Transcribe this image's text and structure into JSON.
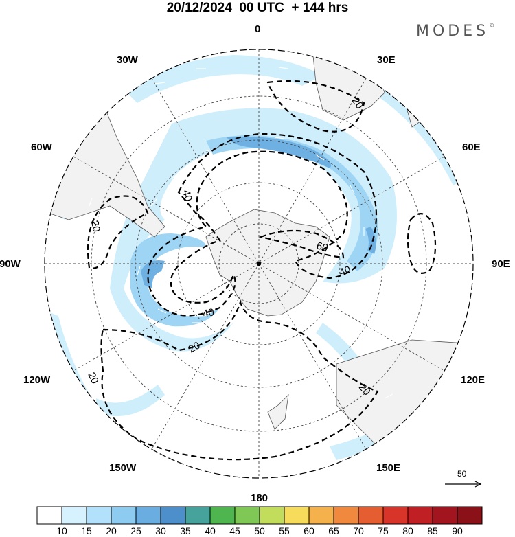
{
  "header": {
    "title": "20/12/2024  00 UTC  + 144 hrs",
    "brand": "MODES",
    "brand_mark": "©"
  },
  "map": {
    "projection": "south-polar-stereographic",
    "longitude_labels": {
      "top": "0",
      "top_right": "30E",
      "right_upper": "60E",
      "right": "90E",
      "right_lower": "120E",
      "bottom_right": "150E",
      "bottom": "180",
      "bottom_left": "150W",
      "left_lower": "120W",
      "left": "90W",
      "left_upper": "60W",
      "top_left": "30W"
    },
    "contour_labels": [
      "20",
      "40",
      "20",
      "40",
      "20",
      "40",
      "60",
      "20",
      "20"
    ],
    "contour_color": "#000000",
    "land_color": "#f2f2f2",
    "ocean_color": "#ffffff"
  },
  "wind_scale": {
    "label": "50"
  },
  "colorbar": {
    "colors": [
      "#ffffff",
      "#d6f2ff",
      "#b2e1fc",
      "#8ecbf1",
      "#6aade0",
      "#4c8fcb",
      "#45a39c",
      "#4fb54f",
      "#80c855",
      "#c2dc5c",
      "#f7dc5c",
      "#f5b24c",
      "#f0893e",
      "#e55e31",
      "#d8342a",
      "#c01f24",
      "#a2151e",
      "#8a1117"
    ],
    "labels": [
      "10",
      "15",
      "20",
      "25",
      "30",
      "35",
      "40",
      "45",
      "50",
      "55",
      "60",
      "65",
      "70",
      "75",
      "80",
      "85",
      "90"
    ]
  }
}
